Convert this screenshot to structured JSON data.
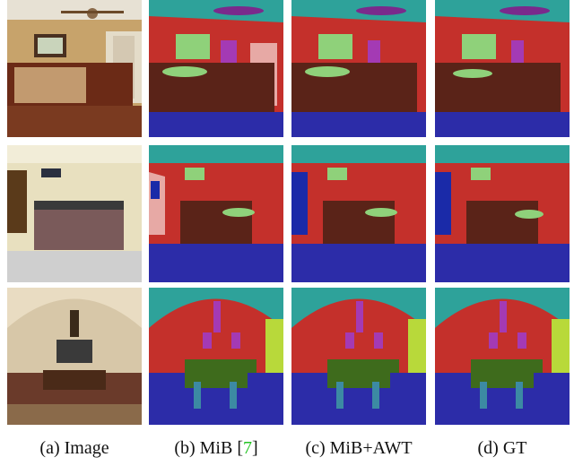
{
  "figure": {
    "captions": [
      {
        "label": "(a) Image"
      },
      {
        "label": "(b) MiB [",
        "ref": "7",
        "suffix": "]"
      },
      {
        "label": "(c) MiB+AWT"
      },
      {
        "label": "(d) GT"
      }
    ]
  },
  "colors": {
    "seg_wall": "#c4302b",
    "seg_ceiling": "#2ea29a",
    "seg_floor": "#2c2ca8",
    "seg_bed": "#5a2318",
    "seg_painting": "#8fd17a",
    "seg_lamp": "#a43ab4",
    "seg_table": "#3e6b1c",
    "seg_chair": "#3c8aa3",
    "seg_door": "#e7a9a5",
    "seg_fan": "#7a2a8c",
    "seg_cabinet": "#1a2aa8"
  }
}
